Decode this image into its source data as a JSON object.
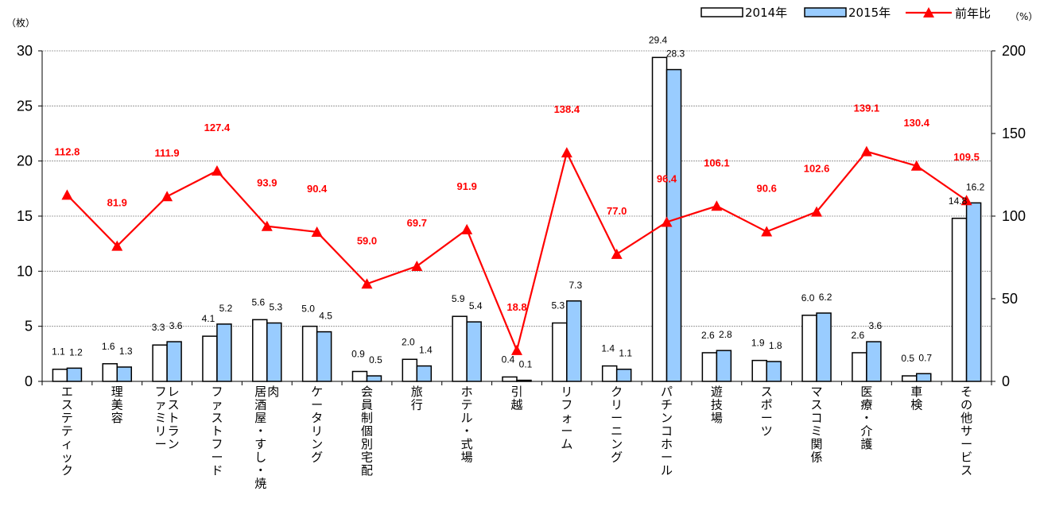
{
  "chart_data": {
    "type": "bar",
    "y_left_unit": "（枚）",
    "y_right_unit": "（%）",
    "y_left_range": [
      0,
      30
    ],
    "y_left_ticks": [
      "0",
      "5",
      "10",
      "15",
      "20",
      "25",
      "30"
    ],
    "y_right_range": [
      0,
      200
    ],
    "y_right_ticks": [
      "0",
      "50",
      "100",
      "150",
      "200"
    ],
    "grid": true,
    "legend_position": "top-right",
    "categories": [
      "エステティック",
      "理美容",
      "ファミリーレストラン",
      "ファストフード",
      "居酒屋・すし・焼肉",
      "ケータリング",
      "会員制個別宅配",
      "旅行",
      "ホテル・式場",
      "引越",
      "リフォーム",
      "クリーニング",
      "パチンコホール",
      "遊技場",
      "スポーツ",
      "マスコミ関係",
      "医療・介護",
      "車検",
      "その他サービス"
    ],
    "category_lines": [
      [
        "エステティック"
      ],
      [
        "理美容"
      ],
      [
        "ファミリー",
        "レストラン"
      ],
      [
        "ファストフード"
      ],
      [
        "居酒屋・すし・焼",
        "肉"
      ],
      [
        "ケータリング"
      ],
      [
        "会員制個別宅配"
      ],
      [
        "旅行"
      ],
      [
        "ホテル・式場"
      ],
      [
        "引越"
      ],
      [
        "リフォーム"
      ],
      [
        "クリーニング"
      ],
      [
        "パチンコホール"
      ],
      [
        "遊技場"
      ],
      [
        "スポーツ"
      ],
      [
        "マスコミ関係"
      ],
      [
        "医療・介護"
      ],
      [
        "車検"
      ],
      [
        "その他サービス"
      ]
    ],
    "series": [
      {
        "name": "2014年",
        "axis": "left",
        "type": "bar",
        "color": "#ffffff",
        "values": [
          1.1,
          1.6,
          3.3,
          4.1,
          5.6,
          5.0,
          0.9,
          2.0,
          5.9,
          0.4,
          5.3,
          1.4,
          29.4,
          2.6,
          1.9,
          6.0,
          2.6,
          0.5,
          14.8
        ],
        "labels": [
          "1.1",
          "1.6",
          "3.3",
          "4.1",
          "5.6",
          "5.0",
          "0.9",
          "2.0",
          "5.9",
          "0.4",
          "5.3",
          "1.4",
          "29.4",
          "2.6",
          "1.9",
          "6.0",
          "2.6",
          "0.5",
          "14.8"
        ]
      },
      {
        "name": "2015年",
        "axis": "left",
        "type": "bar",
        "color": "#99ccff",
        "values": [
          1.2,
          1.3,
          3.6,
          5.2,
          5.3,
          4.5,
          0.5,
          1.4,
          5.4,
          0.1,
          7.3,
          1.1,
          28.3,
          2.8,
          1.8,
          6.2,
          3.6,
          0.7,
          16.2
        ],
        "labels": [
          "1.2",
          "1.3",
          "3.6",
          "5.2",
          "5.3",
          "4.5",
          "0.5",
          "1.4",
          "5.4",
          "0.1",
          "7.3",
          "1.1",
          "28.3",
          "2.8",
          "1.8",
          "6.2",
          "3.6",
          "0.7",
          "16.2"
        ]
      },
      {
        "name": "前年比",
        "axis": "right",
        "type": "line",
        "color": "#ff0000",
        "values": [
          112.8,
          81.9,
          111.9,
          127.4,
          93.9,
          90.4,
          59.0,
          69.7,
          91.9,
          18.8,
          138.4,
          77.0,
          96.4,
          106.1,
          90.6,
          102.6,
          139.1,
          130.4,
          109.5
        ],
        "labels": [
          "112.8",
          "81.9",
          "111.9",
          "127.4",
          "93.9",
          "90.4",
          "59.0",
          "69.7",
          "91.9",
          "18.8",
          "138.4",
          "77.0",
          "96.4",
          "106.1",
          "90.6",
          "102.6",
          "139.1",
          "130.4",
          "109.5"
        ]
      }
    ]
  }
}
